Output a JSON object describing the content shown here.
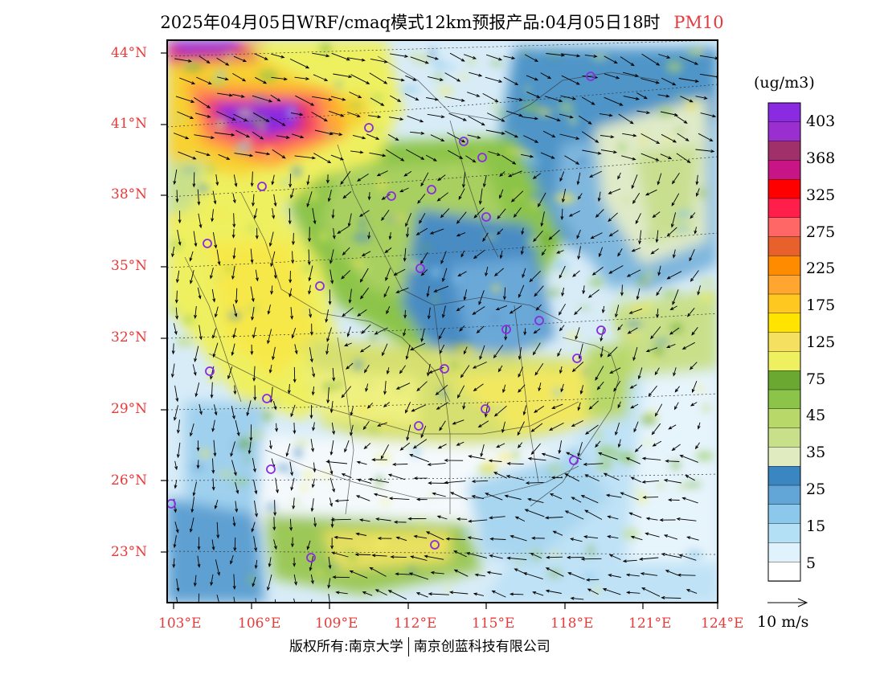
{
  "title": {
    "main": "2025年04月05日WRF/cmaq模式12km预报产品:04月05日18时",
    "pollutant": "PM10",
    "pollutant_color": "#e8383d"
  },
  "lat_labels": [
    "44°N",
    "41°N",
    "38°N",
    "35°N",
    "32°N",
    "29°N",
    "26°N",
    "23°N"
  ],
  "lon_labels": [
    "103°E",
    "106°E",
    "109°E",
    "112°E",
    "115°E",
    "118°E",
    "121°E",
    "124°E"
  ],
  "colorbar": {
    "unit": "(ug/m3)",
    "labels": [
      "403",
      "368",
      "325",
      "275",
      "225",
      "175",
      "125",
      "75",
      "45",
      "35",
      "25",
      "15",
      "5"
    ],
    "colors": [
      "#8a2be2",
      "#9a2ecf",
      "#a0306a",
      "#c71585",
      "#ff0000",
      "#ff1f4a",
      "#ff6666",
      "#e8602c",
      "#ff8c00",
      "#ffa530",
      "#ffc820",
      "#ffe400",
      "#f5e060",
      "#eef060",
      "#6aa832",
      "#8cc44a",
      "#b8d86a",
      "#c9e08a",
      "#e0ecc0",
      "#3a86c0",
      "#62a6d8",
      "#8cc8ec",
      "#b4e0f6",
      "#e0f2fc",
      "#ffffff"
    ]
  },
  "wind_scale": {
    "label": "10 m/s"
  },
  "footer": {
    "left": "版权所有:南京大学",
    "right": "南京创蓝科技有限公司"
  }
}
